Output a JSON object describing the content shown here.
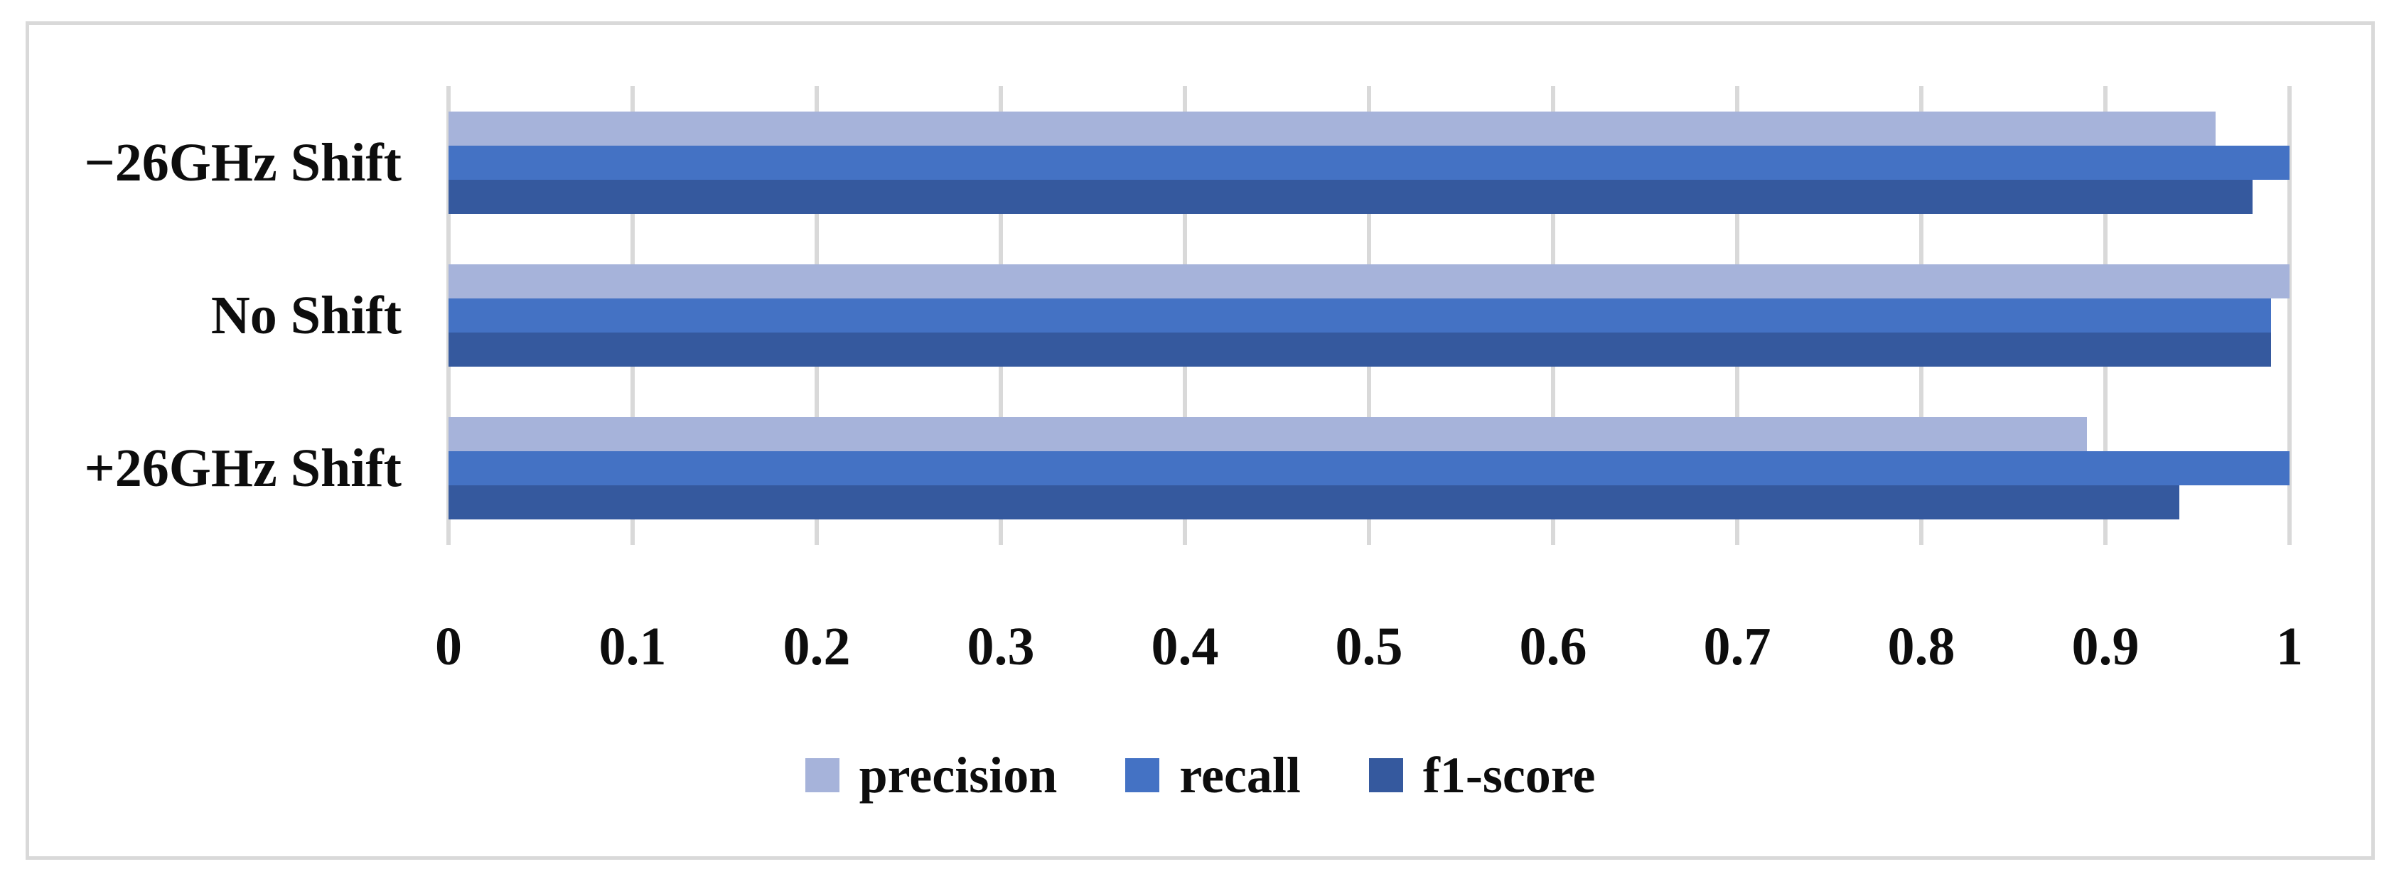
{
  "chart_data": {
    "type": "bar",
    "orientation": "horizontal",
    "title": "",
    "xlabel": "",
    "ylabel": "",
    "categories": [
      "−26GHz Shift",
      "No Shift",
      "+26GHz Shift"
    ],
    "series": [
      {
        "name": "precision",
        "color": "#a6b3da",
        "values": [
          0.96,
          1.0,
          0.89
        ]
      },
      {
        "name": "recall",
        "color": "#4472c4",
        "values": [
          1.0,
          0.99,
          1.0
        ]
      },
      {
        "name": "f1-score",
        "color": "#35599e",
        "values": [
          0.98,
          0.99,
          0.94
        ]
      }
    ],
    "xlim": [
      0,
      1
    ],
    "xticks": [
      0,
      0.1,
      0.2,
      0.3,
      0.4,
      0.5,
      0.6,
      0.7,
      0.8,
      0.9,
      1
    ],
    "xtick_labels": [
      "0",
      "0.1",
      "0.2",
      "0.3",
      "0.4",
      "0.5",
      "0.6",
      "0.7",
      "0.8",
      "0.9",
      "1"
    ],
    "grid": "vertical",
    "legend_position": "bottom"
  },
  "colors": {
    "background": "#ffffff",
    "panel_border": "#d9d9d9",
    "gridline": "#d9d9d9",
    "text": "#0d0d0d"
  }
}
